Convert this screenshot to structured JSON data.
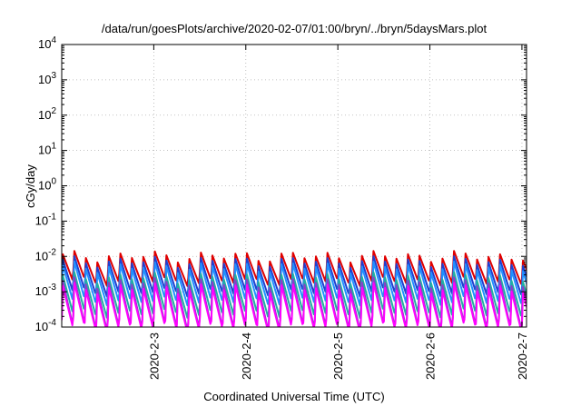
{
  "chart_data": {
    "type": "line",
    "title": "/data/run/goesPlots/archive/2020-02-07/01:00/bryn/../bryn/5daysMars.plot",
    "xlabel": "Coordinated Universal Time (UTC)",
    "ylabel": "cGy/day",
    "yscale": "log",
    "ylim_exponent": [
      -4,
      4
    ],
    "y_ticks": [
      {
        "base": "10",
        "exp": "4"
      },
      {
        "base": "10",
        "exp": "3"
      },
      {
        "base": "10",
        "exp": "2"
      },
      {
        "base": "10",
        "exp": "1"
      },
      {
        "base": "10",
        "exp": "0"
      },
      {
        "base": "10",
        "exp": "-1"
      },
      {
        "base": "10",
        "exp": "-2"
      },
      {
        "base": "10",
        "exp": "-3"
      },
      {
        "base": "10",
        "exp": "-4"
      }
    ],
    "xlim_days": [
      2.0,
      7.05
    ],
    "x_ticks": [
      {
        "label": "2020-2-3",
        "day": 3
      },
      {
        "label": "2020-2-4",
        "day": 4
      },
      {
        "label": "2020-2-5",
        "day": 5
      },
      {
        "label": "2020-2-6",
        "day": 6
      },
      {
        "label": "2020-2-7",
        "day": 7
      }
    ],
    "grid": true,
    "pattern": {
      "start_day": 2.0,
      "period_days": 0.125,
      "count": 41,
      "note_per_cycle": "sawtooth: sharp rise then decay"
    },
    "series": [
      {
        "color": "#e00000",
        "peak_log": -2.0,
        "trough_log": -2.7
      },
      {
        "color": "#1f3fd0",
        "peak_log": -2.15,
        "trough_log": -3.0
      },
      {
        "color": "#2090ff",
        "peak_log": -2.3,
        "trough_log": -3.25
      },
      {
        "color": "#20b0a0",
        "peak_log": -2.6,
        "trough_log": -3.6
      },
      {
        "color": "#8a3fc8",
        "peak_log": -2.75,
        "trough_log": -3.95
      },
      {
        "color": "#ff00ff",
        "peak_log": -2.9,
        "trough_log": -4.0
      }
    ]
  }
}
